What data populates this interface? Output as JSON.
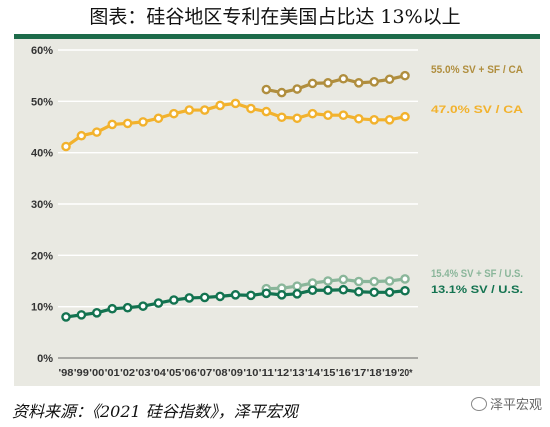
{
  "page": {
    "title": "图表：硅谷地区专利在美国占比达 13%以上"
  },
  "source": "资料来源：《2021 硅谷指数》，泽平宏观",
  "watermark": "泽平宏观",
  "colors": {
    "gold": "#f2b22d",
    "dark_gold": "#b08e3e",
    "dark_green": "#137350",
    "light_green": "#8ab69a",
    "header_bar": "#1d6b4a",
    "plot_bg": "#e9e9e2"
  },
  "chart_data": {
    "type": "line",
    "categories": [
      "'98",
      "'99",
      "'00",
      "'01",
      "'02",
      "'03",
      "'04",
      "'05",
      "'06",
      "'07",
      "'08",
      "'09",
      "'10",
      "'11",
      "'12",
      "'13",
      "'14",
      "'15",
      "'16",
      "'17",
      "'18",
      "'19",
      "'20*"
    ],
    "y_ticks": [
      "0%",
      "10%",
      "20%",
      "30%",
      "40%",
      "50%",
      "60%"
    ],
    "ylim": [
      0,
      60
    ],
    "grid": true,
    "series": [
      {
        "name": "55.0% SV + SF / CA",
        "color": "#b08e3e",
        "values": [
          null,
          null,
          null,
          null,
          null,
          null,
          null,
          null,
          null,
          null,
          null,
          null,
          null,
          52.3,
          51.7,
          52.4,
          53.5,
          53.6,
          54.4,
          53.6,
          53.8,
          54.3,
          55.0
        ]
      },
      {
        "name": "47.0% SV / CA",
        "color": "#f2b22d",
        "values": [
          41.2,
          43.3,
          44.0,
          45.5,
          45.7,
          46.0,
          46.7,
          47.6,
          48.3,
          48.3,
          49.2,
          49.6,
          48.6,
          48.0,
          46.9,
          46.7,
          47.6,
          47.3,
          47.3,
          46.6,
          46.4,
          46.4,
          47.0
        ]
      },
      {
        "name": "15.4% SV + SF / U.S.",
        "color": "#8ab69a",
        "values": [
          null,
          null,
          null,
          null,
          null,
          null,
          null,
          null,
          null,
          null,
          null,
          null,
          null,
          13.5,
          13.6,
          14.0,
          14.6,
          15.0,
          15.3,
          14.9,
          14.9,
          15.0,
          15.4
        ]
      },
      {
        "name": "13.1% SV / U.S.",
        "color": "#137350",
        "values": [
          8.0,
          8.4,
          8.8,
          9.6,
          9.8,
          10.1,
          10.7,
          11.3,
          11.7,
          11.8,
          12.0,
          12.3,
          12.2,
          12.6,
          12.3,
          12.5,
          13.2,
          13.2,
          13.3,
          12.9,
          12.8,
          12.8,
          13.1
        ]
      }
    ]
  }
}
